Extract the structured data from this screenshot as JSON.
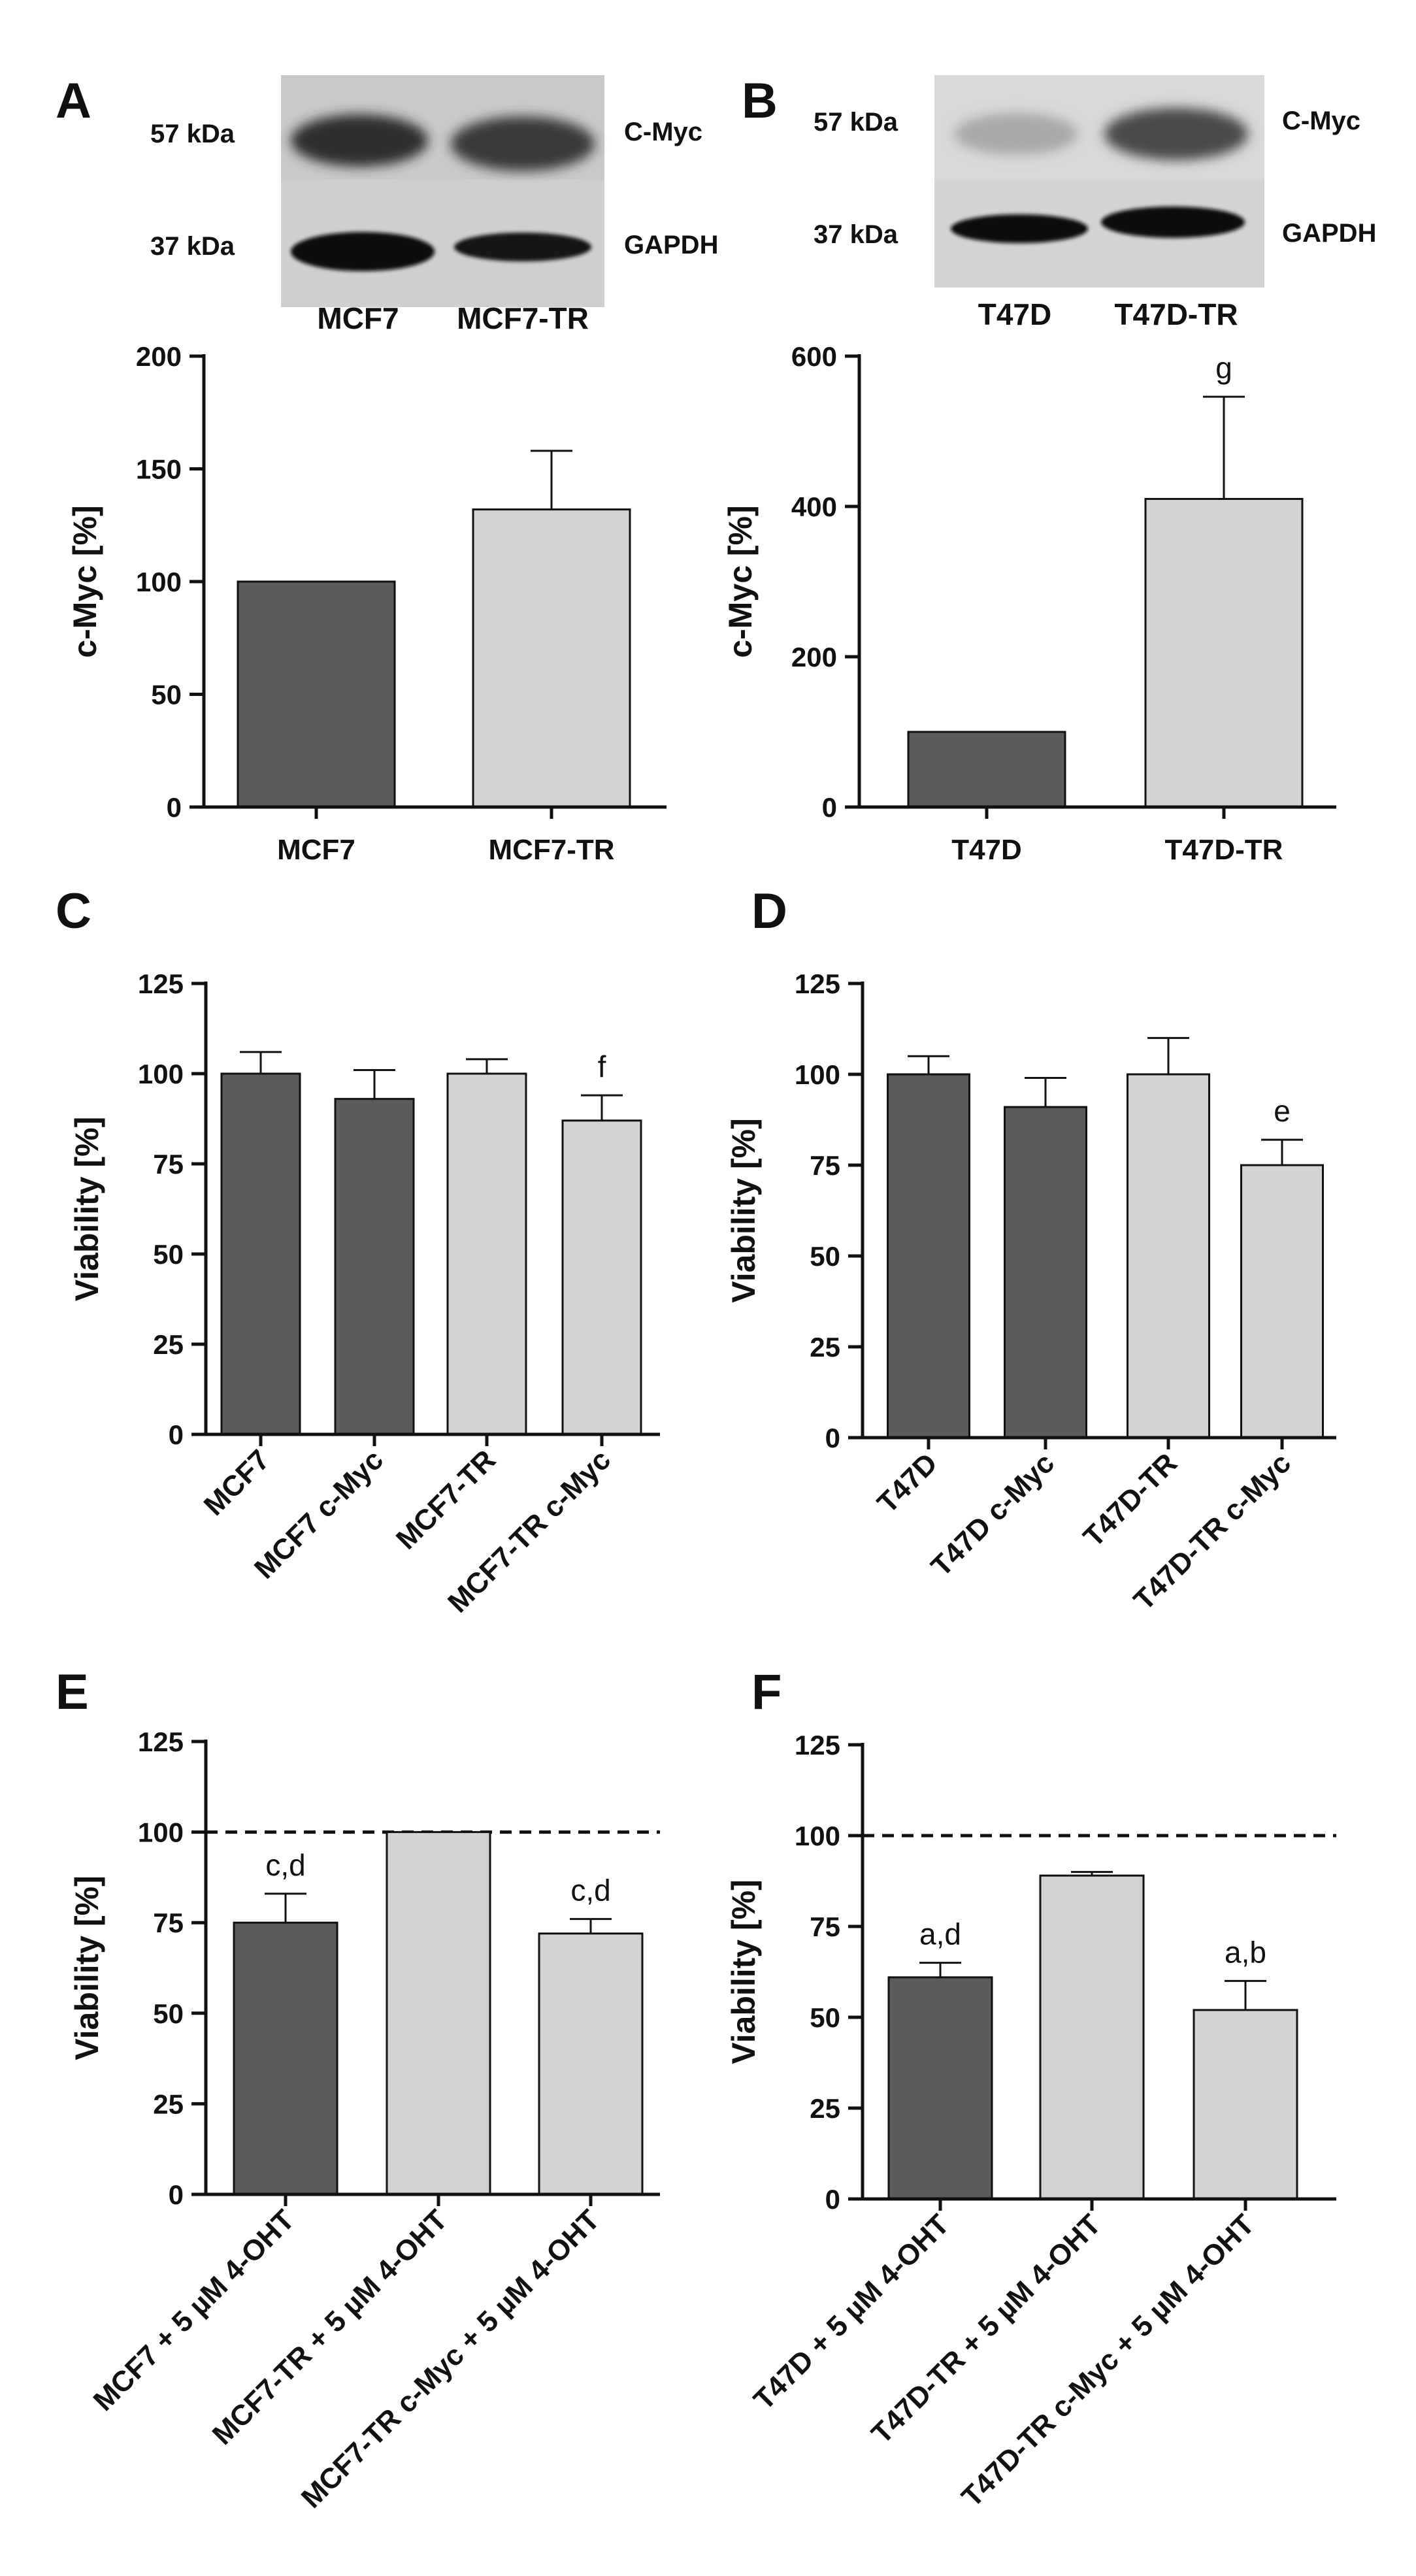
{
  "panels": {
    "A": "A",
    "B": "B",
    "C": "C",
    "D": "D",
    "E": "E",
    "F": "F"
  },
  "blots": [
    {
      "size_top": "57 kDa",
      "size_bottom": "37 kDa",
      "protein_top": "C-Myc",
      "protein_bottom": "GAPDH",
      "lanes": [
        "MCF7",
        "MCF7-TR"
      ]
    },
    {
      "size_top": "57 kDa",
      "size_bottom": "37 kDa",
      "protein_top": "C-Myc",
      "protein_bottom": "GAPDH",
      "lanes": [
        "T47D",
        "T47D-TR"
      ]
    }
  ],
  "colors": {
    "dark": "#5b5b5b",
    "light": "#d3d3d3",
    "axis": "#111111"
  },
  "chart_data": [
    {
      "panel": "A",
      "type": "bar",
      "categories": [
        "MCF7",
        "MCF7-TR"
      ],
      "values": [
        100,
        132
      ],
      "errors": [
        0,
        26
      ],
      "colors": [
        "dark",
        "light"
      ],
      "sig": [
        "",
        ""
      ],
      "ylabel": "c-Myc [%]",
      "ylim": [
        0,
        200
      ],
      "yticks": [
        0,
        50,
        100,
        150,
        200
      ],
      "reference_line": null,
      "rotate_labels": false
    },
    {
      "panel": "B",
      "type": "bar",
      "categories": [
        "T47D",
        "T47D-TR"
      ],
      "values": [
        100,
        410
      ],
      "errors": [
        0,
        136
      ],
      "colors": [
        "dark",
        "light"
      ],
      "sig": [
        "",
        "g"
      ],
      "ylabel": "c-Myc [%]",
      "ylim": [
        0,
        600
      ],
      "yticks": [
        0,
        200,
        400,
        600
      ],
      "reference_line": null,
      "rotate_labels": false
    },
    {
      "panel": "C",
      "type": "bar",
      "categories": [
        "MCF7",
        "MCF7 c-Myc",
        "MCF7-TR",
        "MCF7-TR c-Myc"
      ],
      "values": [
        100,
        93,
        100,
        87
      ],
      "errors": [
        6,
        8,
        4,
        7
      ],
      "colors": [
        "dark",
        "dark",
        "light",
        "light"
      ],
      "sig": [
        "",
        "",
        "",
        "f"
      ],
      "ylabel": "Viability [%]",
      "ylim": [
        0,
        125
      ],
      "yticks": [
        0,
        25,
        50,
        75,
        100,
        125
      ],
      "reference_line": null,
      "rotate_labels": true
    },
    {
      "panel": "D",
      "type": "bar",
      "categories": [
        "T47D",
        "T47D c-Myc",
        "T47D-TR",
        "T47D-TR c-Myc"
      ],
      "values": [
        100,
        91,
        100,
        75
      ],
      "errors": [
        5,
        8,
        10,
        7
      ],
      "colors": [
        "dark",
        "dark",
        "light",
        "light"
      ],
      "sig": [
        "",
        "",
        "",
        "e"
      ],
      "ylabel": "Viability [%]",
      "ylim": [
        0,
        125
      ],
      "yticks": [
        0,
        25,
        50,
        75,
        100,
        125
      ],
      "reference_line": null,
      "rotate_labels": true
    },
    {
      "panel": "E",
      "type": "bar",
      "categories": [
        "MCF7 + 5 µM 4-OHT",
        "MCF7-TR + 5 µM 4-OHT",
        "MCF7-TR c-Myc + 5 µM 4-OHT"
      ],
      "values": [
        75,
        100,
        72
      ],
      "errors": [
        8,
        0,
        4
      ],
      "colors": [
        "dark",
        "light",
        "light"
      ],
      "sig": [
        "c,d",
        "",
        "c,d"
      ],
      "ylabel": "Viability [%]",
      "ylim": [
        0,
        125
      ],
      "yticks": [
        0,
        25,
        50,
        75,
        100,
        125
      ],
      "reference_line": 100,
      "rotate_labels": true
    },
    {
      "panel": "F",
      "type": "bar",
      "categories": [
        "T47D + 5 µM 4-OHT",
        "T47D-TR + 5 µM 4-OHT",
        "T47D-TR c-Myc + 5 µM 4-OHT"
      ],
      "values": [
        61,
        89,
        52
      ],
      "errors": [
        4,
        1,
        8
      ],
      "colors": [
        "dark",
        "light",
        "light"
      ],
      "sig": [
        "a,d",
        "",
        "a,b"
      ],
      "ylabel": "Viability [%]",
      "ylim": [
        0,
        125
      ],
      "yticks": [
        0,
        25,
        50,
        75,
        100,
        125
      ],
      "reference_line": 100,
      "rotate_labels": true
    }
  ]
}
